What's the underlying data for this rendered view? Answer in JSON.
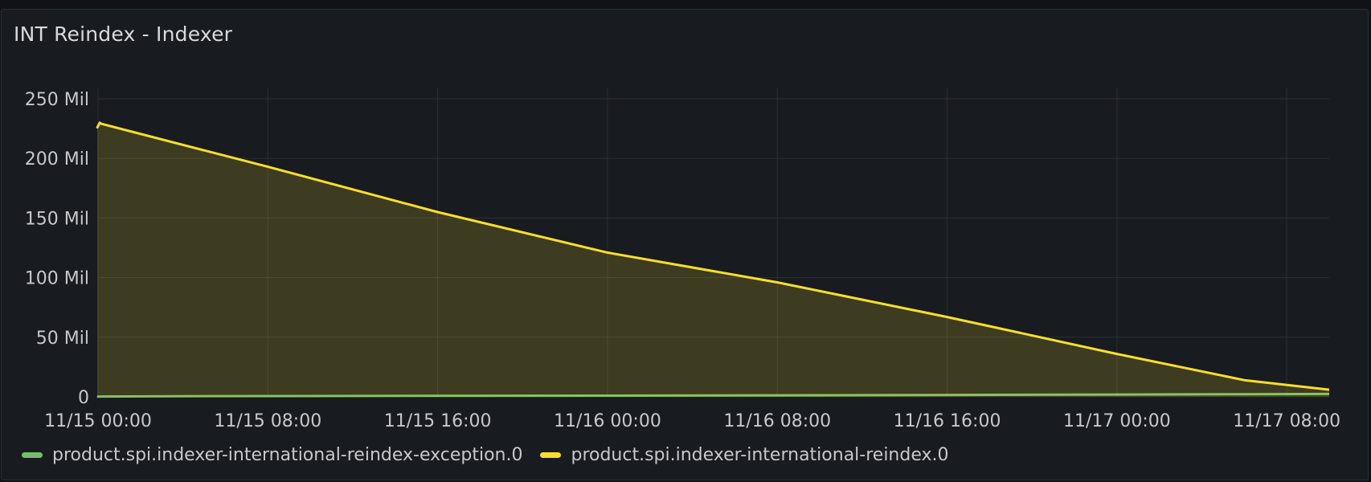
{
  "panel": {
    "title": "INT Reindex - Indexer"
  },
  "colors": {
    "background": "#111217",
    "panel": "#181b1f",
    "grid": "#2b2e34",
    "text": "#c7c8cb",
    "series_reindex": "#fade2a",
    "series_exception": "#73bf69"
  },
  "chart_data": {
    "type": "line",
    "title": "INT Reindex - Indexer",
    "xlabel": "",
    "ylabel": "",
    "ylim": [
      0,
      250
    ],
    "y_unit": "Mil",
    "y_ticks": [
      {
        "value": 0,
        "label": "0"
      },
      {
        "value": 50,
        "label": "50 Mil"
      },
      {
        "value": 100,
        "label": "100 Mil"
      },
      {
        "value": 150,
        "label": "150 Mil"
      },
      {
        "value": 200,
        "label": "200 Mil"
      },
      {
        "value": 250,
        "label": "250 Mil"
      }
    ],
    "xlim": [
      "11/15 00:00",
      "11/17 10:00"
    ],
    "x_ticks": [
      {
        "value": "11/15 00:00",
        "label": "11/15 00:00"
      },
      {
        "value": "11/15 08:00",
        "label": "11/15 08:00"
      },
      {
        "value": "11/15 16:00",
        "label": "11/15 16:00"
      },
      {
        "value": "11/16 00:00",
        "label": "11/16 00:00"
      },
      {
        "value": "11/16 08:00",
        "label": "11/16 08:00"
      },
      {
        "value": "11/16 16:00",
        "label": "11/16 16:00"
      },
      {
        "value": "11/17 00:00",
        "label": "11/17 00:00"
      },
      {
        "value": "11/17 08:00",
        "label": "11/17 08:00"
      }
    ],
    "grid": true,
    "legend_position": "bottom-left",
    "series": [
      {
        "name": "product.spi.indexer-international-reindex-exception.0",
        "color": "#73bf69",
        "fill": false,
        "x": [
          "11/15 00:00",
          "11/15 05:40",
          "11/15 23:30",
          "11/16 16:30",
          "11/17 05:50",
          "11/17 10:00"
        ],
        "values": [
          0.2,
          0.6,
          1.0,
          1.6,
          2.2,
          2.4
        ]
      },
      {
        "name": "product.spi.indexer-international-reindex.0",
        "color": "#fade2a",
        "fill": true,
        "x": [
          "11/14 23:58",
          "11/15 00:05",
          "11/15 00:10",
          "11/15 08:00",
          "11/15 16:00",
          "11/16 00:00",
          "11/16 08:00",
          "11/16 16:00",
          "11/17 00:00",
          "11/17 06:00",
          "11/17 10:00"
        ],
        "values": [
          226,
          230,
          229,
          193,
          155,
          121,
          96,
          67,
          36,
          14,
          6
        ]
      }
    ]
  }
}
